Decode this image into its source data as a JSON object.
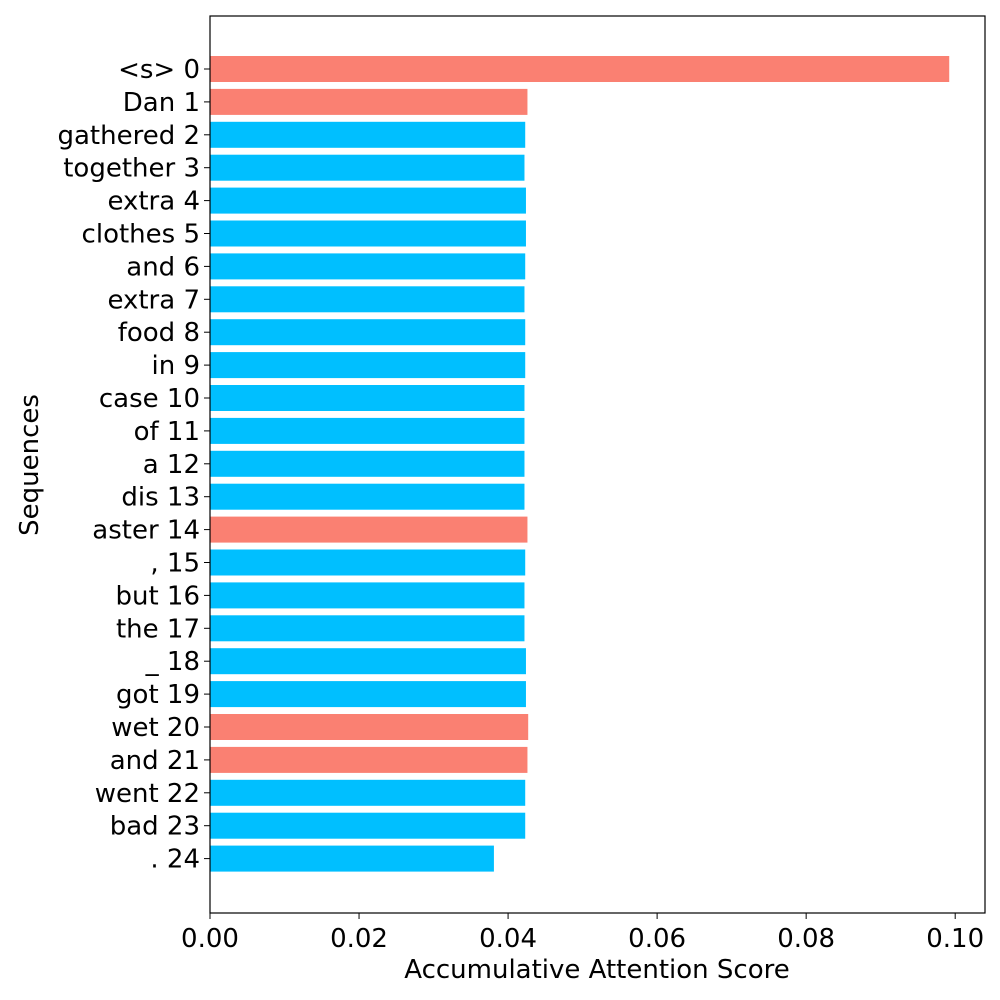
{
  "chart_data": {
    "type": "bar",
    "orientation": "horizontal",
    "title": "",
    "xlabel": "Accumulative Attention Score",
    "ylabel": "Sequences",
    "xlim": [
      0.0,
      0.104
    ],
    "xticks": [
      "0.00",
      "0.02",
      "0.04",
      "0.06",
      "0.08",
      "0.10"
    ],
    "categories": [
      "<s> 0",
      "Dan 1",
      "gathered 2",
      "together 3",
      "extra 4",
      "clothes 5",
      "and 6",
      "extra 7",
      "food 8",
      "in 9",
      "case 10",
      "of 11",
      "a 12",
      "dis 13",
      "aster 14",
      ", 15",
      "but 16",
      "the 17",
      "_ 18",
      "got 19",
      "wet 20",
      "and 21",
      "went 22",
      "bad 23",
      ". 24"
    ],
    "values": [
      0.0992,
      0.0426,
      0.0423,
      0.0422,
      0.0424,
      0.0424,
      0.0423,
      0.0422,
      0.0423,
      0.0423,
      0.0422,
      0.0422,
      0.0422,
      0.0422,
      0.0426,
      0.0423,
      0.0422,
      0.0422,
      0.0424,
      0.0424,
      0.0427,
      0.0426,
      0.0423,
      0.0423,
      0.0381
    ],
    "highlighted": [
      true,
      true,
      false,
      false,
      false,
      false,
      false,
      false,
      false,
      false,
      false,
      false,
      false,
      false,
      true,
      false,
      false,
      false,
      false,
      false,
      true,
      true,
      false,
      false,
      false
    ],
    "colors": {
      "highlight": "#FA8072",
      "normal": "#00BFFF"
    },
    "grid": false,
    "legend": "none"
  }
}
